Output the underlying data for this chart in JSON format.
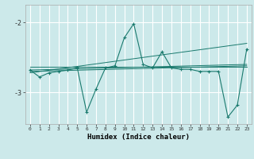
{
  "background_color": "#cce9ea",
  "grid_color": "#ffffff",
  "line_color": "#1a7a6e",
  "xlabel": "Humidex (Indice chaleur)",
  "xlim": [
    -0.5,
    23.5
  ],
  "ylim": [
    -3.45,
    -1.75
  ],
  "yticks": [
    -3,
    -2
  ],
  "xticks": [
    0,
    1,
    2,
    3,
    4,
    5,
    6,
    7,
    8,
    9,
    10,
    11,
    12,
    13,
    14,
    15,
    16,
    17,
    18,
    19,
    20,
    21,
    22,
    23
  ],
  "main_x": [
    0,
    1,
    2,
    3,
    4,
    5,
    6,
    7,
    8,
    9,
    10,
    11,
    12,
    13,
    14,
    15,
    16,
    17,
    18,
    19,
    20,
    21,
    22,
    23
  ],
  "main_y": [
    -2.68,
    -2.78,
    -2.72,
    -2.7,
    -2.68,
    -2.65,
    -3.28,
    -2.95,
    -2.65,
    -2.62,
    -2.22,
    -2.02,
    -2.6,
    -2.65,
    -2.42,
    -2.65,
    -2.67,
    -2.67,
    -2.7,
    -2.7,
    -2.7,
    -3.35,
    -3.18,
    -2.38
  ],
  "trend_lines": [
    {
      "x": [
        0,
        23
      ],
      "y": [
        -2.63,
        -2.63
      ]
    },
    {
      "x": [
        0,
        23
      ],
      "y": [
        -2.68,
        -2.6
      ]
    },
    {
      "x": [
        0,
        23
      ],
      "y": [
        -2.7,
        -2.62
      ]
    },
    {
      "x": [
        0,
        23
      ],
      "y": [
        -2.72,
        -2.3
      ]
    }
  ]
}
